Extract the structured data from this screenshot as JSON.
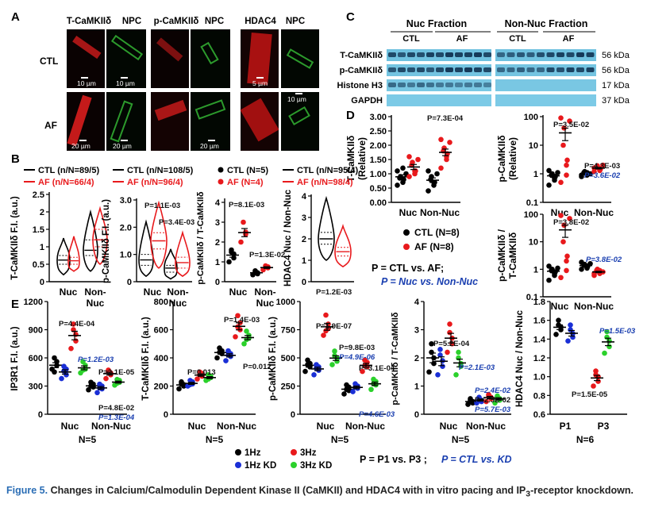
{
  "figure": {
    "panel_labels": {
      "A": "A",
      "B": "B",
      "C": "C",
      "D": "D",
      "E": "E"
    },
    "caption": {
      "label": "Figure 5.",
      "text1": "Changes in Calcium/Calmodulin Dependent Kinase II (CaMKII) and HDAC4 with in vitro pacing and IP",
      "text_sub": "3",
      "text2": "-receptor knockdown."
    }
  },
  "panelA": {
    "col_headers": [
      "T-CaMKIIδ",
      "NPC",
      "p-CaMKIIδ",
      "NPC",
      "HDAC4",
      "NPC"
    ],
    "row_labels": [
      "CTL",
      "AF"
    ],
    "scalebars": {
      "ctl": [
        "10 µm",
        "10 µm",
        "",
        "",
        "5 µm",
        "10 µm"
      ],
      "af": [
        "20 µm",
        "20 µm",
        "",
        "20 µm",
        "",
        ""
      ]
    }
  },
  "panelB": {
    "legends": [
      {
        "ctl": "CTL (n/N=89/5)",
        "af": "AF (n/N=66/4)"
      },
      {
        "ctl": "CTL (n/N=108/5)",
        "af": "AF (n/N=96/4)"
      },
      {
        "ctl": "CTL (N=5)",
        "af": "AF (N=4)"
      },
      {
        "ctl": "CTL (n/N=95/4)",
        "af": "AF (n/N=98/4)"
      }
    ],
    "ylabels": [
      "T-CaMKIIδ F.I. (a.u.)",
      "p-CaMKIIδ F.I. (a.u.)",
      "p-CaMKIIδ / T-CaMKIIδ",
      "HDAC4 Nuc / Non-Nuc"
    ],
    "xcats": [
      "Nuc",
      "Non-\nNuc"
    ],
    "pvalues": [
      "P=1.1E-03",
      "P=3.4E-03",
      "P=8.1E-03",
      "P=1.3E-02",
      "P=1.2E-03"
    ],
    "colors": {
      "ctl": "#000000",
      "af": "#e8191c"
    }
  },
  "panelC": {
    "headers": [
      "Nuc Fraction",
      "Non-Nuc Fraction"
    ],
    "sub_headers": [
      "CTL",
      "AF",
      "CTL",
      "AF"
    ],
    "bands": [
      "T-CaMKIIδ",
      "p-CaMKIIδ",
      "Histone H3",
      "GAPDH"
    ],
    "sizes": [
      "56 kDa",
      "56 kDa",
      "17 kDa",
      "37 kDa"
    ]
  },
  "panelD": {
    "ylabels": [
      "T-CaMKIIδ (Relative)",
      "p-CaMKIIδ (Relative)",
      "p-CaMKIIδ / T-CaMKIIδ"
    ],
    "xcats": [
      "Nuc",
      "Non-Nuc"
    ],
    "pvalues": [
      "P=7.3E-04",
      "P=3.5E-02",
      "P=4.3E-03",
      "P=3.6E-02",
      "P=3.8E-02",
      "P=3.8E-02"
    ],
    "legend": [
      "CTL (N=8)",
      "AF (N=8)"
    ],
    "note1": "P = CTL vs. AF;",
    "note2": "P = Nuc vs. Non-Nuc"
  },
  "panelE": {
    "ylabels": [
      "IP3R1 F.I. (a.u.)",
      "T-CaMKIIδ F.I. (a.u.)",
      "p-CaMKIIδ F.I. (a.u.)",
      "p-CaMKIIδ / T-CaMKIIδ",
      "HDAC4 Nuc / Non-Nuc"
    ],
    "xcats": [
      "Nuc",
      "Non-Nuc"
    ],
    "xcats_last": [
      "P1",
      "P3"
    ],
    "n_labels": [
      "N=5",
      "N=5",
      "N=5",
      "N=5",
      "N=6"
    ],
    "pvalues": [
      "P=4.4E-04",
      "P=1.2E-03",
      "P=2.1E-05",
      "P=4.8E-02",
      "P=1.3E-04",
      "P=1.4E-03",
      "P=0.013",
      "P=0.012",
      "P=1.9E-07",
      "P=9.8E-03",
      "P=4.9E-06",
      "P=3.1E-04",
      "P=4.6E-03",
      "P=5.2E-04",
      "P=2.1E-03",
      "P=2.4E-02",
      "P=2.5E-02",
      "P=5.7E-03",
      "P=1.5E-03",
      "P=1.5E-05"
    ],
    "legend": [
      "1Hz",
      "3Hz",
      "1Hz KD",
      "3Hz KD"
    ],
    "legend_colors": [
      "#000000",
      "#e8191c",
      "#1a2fd6",
      "#2bd12b"
    ],
    "note1": "P = P1 vs. P3 ;",
    "note2": "P = CTL vs. KD"
  }
}
